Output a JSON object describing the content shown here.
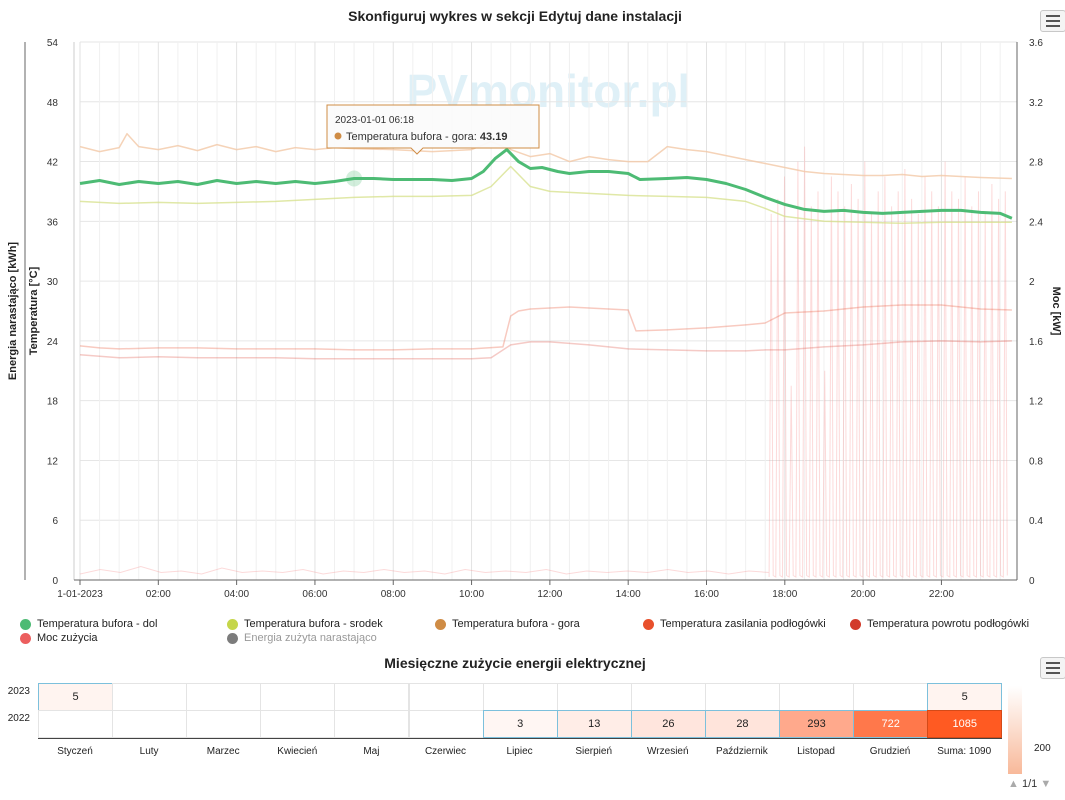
{
  "header": {
    "title": "Skonfiguruj wykres w sekcji Edytuj dane instalacji"
  },
  "watermark": "PVmonitor.pl",
  "chart_data": [
    {
      "type": "line",
      "title": "Skonfiguruj wykres w sekcji Edytuj dane instalacji",
      "x_tick_labels": [
        "1-01-2023",
        "02:00",
        "04:00",
        "06:00",
        "08:00",
        "10:00",
        "12:00",
        "14:00",
        "16:00",
        "18:00",
        "20:00",
        "22:00"
      ],
      "y_left_ticks": [
        "0",
        "6",
        "12",
        "18",
        "24",
        "30",
        "36",
        "42",
        "48",
        "54"
      ],
      "y_right_ticks": [
        "0",
        "0.4",
        "0.8",
        "1.2",
        "1.6",
        "2",
        "2.4",
        "2.8",
        "3.2",
        "3.6"
      ],
      "y_left_labels": [
        "Energia narastająco [kWh]",
        "Temperatura [°C]"
      ],
      "y_right_label": "Moc [kW]",
      "ylim_left": [
        0,
        54
      ],
      "ylim_right": [
        0,
        3.6
      ],
      "x_unit": "hour",
      "xlim": [
        0,
        24
      ],
      "grid": true,
      "series": [
        {
          "name": "Temperatura bufora - dol",
          "color": "#4dbb74",
          "opacity": 1,
          "width": 3,
          "x": [
            0,
            0.5,
            1,
            1.5,
            2,
            2.5,
            3,
            3.5,
            4,
            4.5,
            5,
            5.5,
            6,
            6.5,
            7,
            7.5,
            8,
            8.5,
            9,
            9.5,
            10,
            10.3,
            10.6,
            10.9,
            11.2,
            11.5,
            11.8,
            12.2,
            12.5,
            13,
            13.5,
            14,
            14.3,
            15,
            15.5,
            16,
            16.5,
            17,
            17.5,
            18,
            18.5,
            19,
            19.5,
            20,
            20.5,
            21,
            21.5,
            22,
            22.5,
            23,
            23.5,
            23.8
          ],
          "y": [
            39.8,
            40.1,
            39.7,
            40.0,
            39.8,
            40.0,
            39.7,
            40.1,
            39.8,
            40.0,
            39.8,
            40.0,
            39.8,
            40.0,
            40.3,
            40.3,
            40.2,
            40.2,
            40.2,
            40.1,
            40.3,
            41.0,
            42.3,
            43.2,
            42.0,
            41.3,
            41.4,
            41.0,
            40.8,
            41.0,
            41.0,
            40.8,
            40.2,
            40.3,
            40.4,
            40.2,
            39.8,
            39.2,
            38.4,
            37.7,
            37.2,
            37.0,
            37.1,
            36.9,
            36.8,
            36.9,
            37.0,
            37.1,
            37.1,
            36.9,
            36.8,
            36.3
          ]
        },
        {
          "name": "Temperatura bufora - srodek",
          "color": "#d6e08a",
          "opacity": 0.75,
          "width": 1.5,
          "x": [
            0,
            1,
            2,
            3,
            4,
            5,
            6,
            7,
            8,
            9,
            10,
            10.5,
            11,
            11.5,
            12,
            13,
            14,
            15,
            16,
            17,
            17.5,
            18,
            19,
            20,
            21,
            22,
            23,
            23.8
          ],
          "y": [
            38.0,
            37.8,
            37.9,
            37.8,
            37.9,
            38.0,
            38.2,
            38.4,
            38.5,
            38.5,
            38.6,
            39.5,
            41.5,
            39.5,
            39.0,
            38.8,
            38.6,
            38.5,
            38.4,
            38.0,
            37.3,
            36.5,
            36.0,
            35.9,
            35.8,
            35.9,
            35.9,
            35.9
          ]
        },
        {
          "name": "Temperatura bufora - gora",
          "color": "#f2c8a6",
          "opacity": 0.8,
          "width": 1.5,
          "x": [
            0,
            0.5,
            1,
            1.2,
            1.5,
            2,
            2.5,
            3,
            3.5,
            4,
            4.5,
            5,
            5.5,
            6,
            6.5,
            7,
            8,
            9,
            10,
            10.5,
            11,
            11.5,
            12,
            12.5,
            13,
            13.5,
            14,
            14.5,
            15,
            15.5,
            16,
            16.5,
            17,
            17.5,
            18,
            18.5,
            19,
            19.5,
            20,
            20.5,
            21,
            21.5,
            22,
            22.5,
            23,
            23.8
          ],
          "y": [
            43.5,
            43.0,
            43.4,
            44.8,
            43.5,
            43.2,
            43.6,
            43.1,
            43.7,
            43.2,
            43.5,
            43.0,
            43.4,
            43.2,
            43.4,
            43.3,
            43.2,
            43.0,
            43.2,
            44.0,
            43.2,
            42.5,
            42.8,
            42.0,
            42.5,
            42.2,
            42.0,
            42.0,
            43.5,
            43.2,
            43.0,
            42.6,
            42.2,
            41.8,
            41.4,
            41.0,
            40.8,
            40.7,
            40.6,
            40.6,
            40.7,
            40.5,
            40.6,
            40.5,
            40.4,
            40.3
          ]
        },
        {
          "name": "Temperatura zasilania podłogówki",
          "color": "#e85a3a",
          "opacity": 0.32,
          "width": 1.5,
          "x": [
            0,
            0.5,
            1,
            2,
            3,
            4,
            5,
            6,
            7,
            8,
            9,
            10,
            10.8,
            11,
            11.2,
            11.5,
            12,
            12.5,
            13,
            13.5,
            14,
            14.2,
            15,
            16,
            17,
            17.5,
            18,
            19,
            20,
            21,
            22,
            23,
            23.8
          ],
          "y": [
            23.5,
            23.3,
            23.2,
            23.3,
            23.3,
            23.2,
            23.2,
            23.2,
            23.1,
            23.1,
            23.2,
            23.2,
            23.4,
            26.5,
            27.0,
            27.2,
            27.3,
            27.4,
            27.3,
            27.2,
            27.1,
            25.0,
            25.1,
            25.3,
            25.6,
            25.8,
            26.8,
            27.0,
            27.4,
            27.6,
            27.6,
            27.2,
            27.1
          ]
        },
        {
          "name": "Temperatura powrotu podłogówki",
          "color": "#e05a4e",
          "opacity": 0.32,
          "width": 1.5,
          "x": [
            0,
            1,
            2,
            3,
            4,
            5,
            6,
            7,
            8,
            9,
            10,
            10.5,
            11,
            11.5,
            12,
            13,
            14,
            15,
            16,
            17,
            17.5,
            18,
            19,
            20,
            21,
            22,
            23,
            23.8
          ],
          "y": [
            22.6,
            22.3,
            22.4,
            22.3,
            22.3,
            22.3,
            22.2,
            22.2,
            22.2,
            22.2,
            22.2,
            22.3,
            23.6,
            23.9,
            23.9,
            23.6,
            23.2,
            23.1,
            23.0,
            23.0,
            23.1,
            23.1,
            23.4,
            23.6,
            23.9,
            24.0,
            23.9,
            24.0
          ]
        },
        {
          "name": "Moc zużycia",
          "color": "#f59494",
          "opacity": 0.35,
          "width": 1,
          "axis": "right",
          "spikes_from_hour": 17.6,
          "spike_values_kw": [
            2.45,
            2.55,
            2.7,
            1.3,
            2.8,
            2.9,
            2.5,
            2.6,
            1.4,
            2.7,
            2.6,
            2.5,
            2.65,
            2.55,
            2.8,
            2.45,
            2.6,
            2.7,
            2.5,
            2.6,
            2.75,
            2.55,
            2.45,
            2.7,
            2.6,
            2.5,
            2.8,
            2.6,
            2.55,
            2.7,
            2.5,
            2.6,
            2.45,
            2.65,
            2.55,
            2.6
          ],
          "base_values_kw": [
            0.04,
            0.07,
            0.05,
            0.09,
            0.05,
            0.06,
            0.04,
            0.08,
            0.05,
            0.06,
            0.05,
            0.07,
            0.04,
            0.06,
            0.05,
            0.07,
            0.05,
            0.06,
            0.04,
            0.07,
            0.05,
            0.06,
            0.05,
            0.07,
            0.04,
            0.06,
            0.05,
            0.06,
            0.05,
            0.07,
            0.05,
            0.06,
            0.04,
            0.06,
            0.05
          ]
        }
      ],
      "tooltip": {
        "date": "2023-01-01 06:18",
        "series": "Temperatura bufora - gora",
        "value": "43.19",
        "x_hour": 10.9,
        "y": 43.2
      },
      "hover_marker_hour": 7.0,
      "legend": [
        {
          "name": "Temperatura bufora - dol",
          "color": "#4dbb74",
          "dimmed": false
        },
        {
          "name": "Temperatura bufora - srodek",
          "color": "#c5d64a",
          "dimmed": false
        },
        {
          "name": "Temperatura bufora - gora",
          "color": "#cf8c45",
          "dimmed": false
        },
        {
          "name": "Temperatura zasilania podłogówki",
          "color": "#e8502c",
          "dimmed": false
        },
        {
          "name": "Temperatura powrotu podłogówki",
          "color": "#d23a2a",
          "dimmed": false
        },
        {
          "name": "Moc zużycia",
          "color": "#ec5e5e",
          "dimmed": false
        },
        {
          "name": "Energia zużyta narastająco",
          "color": "#7c7c7c",
          "dimmed": true
        }
      ]
    },
    {
      "type": "heatmap",
      "title": "Miesięczne zużycie energii elektrycznej",
      "rows": [
        "2023",
        "2022"
      ],
      "columns": [
        "Styczeń",
        "Luty",
        "Marzec",
        "Kwiecień",
        "Maj",
        "Czerwiec",
        "Lipiec",
        "Sierpień",
        "Wrzesień",
        "Październik",
        "Listopad",
        "Grudzień",
        "Suma: 1090"
      ],
      "values": [
        [
          5,
          null,
          null,
          null,
          null,
          null,
          null,
          null,
          null,
          null,
          null,
          null,
          5
        ],
        [
          null,
          null,
          null,
          null,
          null,
          null,
          3,
          13,
          26,
          28,
          293,
          722,
          1085
        ]
      ],
      "color_scale": [
        "#ffffff",
        "#f05a22"
      ],
      "scale_tick": "200",
      "pager": "1/1"
    }
  ],
  "pager_text": "1/1"
}
